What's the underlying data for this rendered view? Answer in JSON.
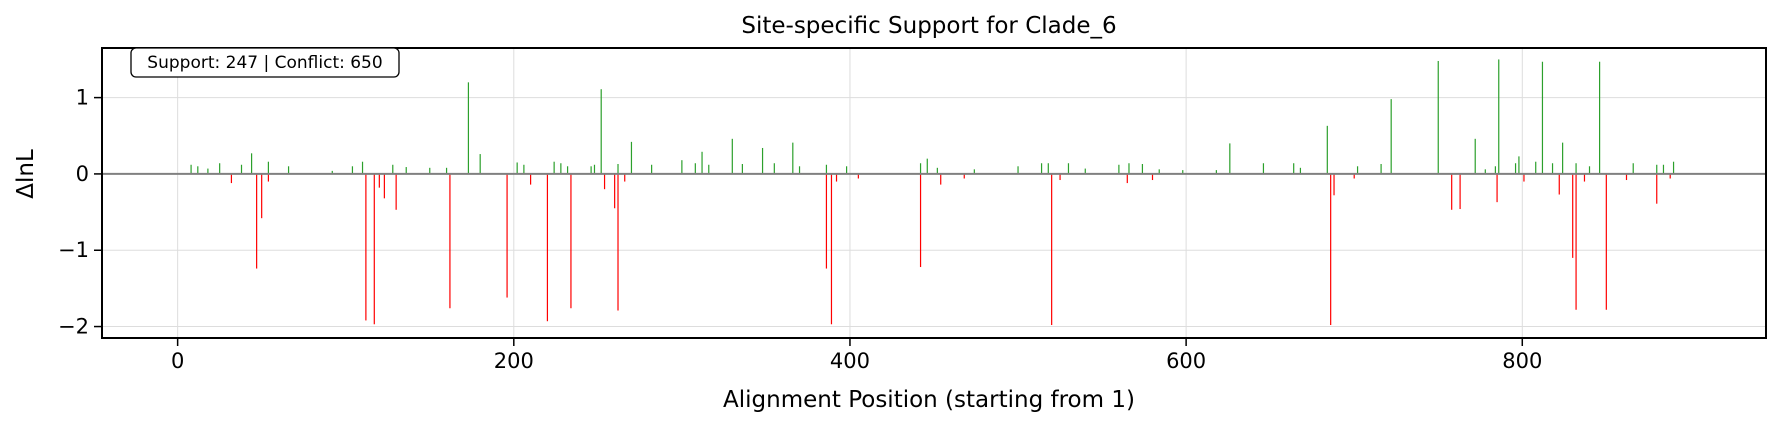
{
  "chart_data": {
    "type": "bar",
    "title": "Site-specific Support for Clade_6",
    "xlabel": "Alignment Position (starting from 1)",
    "ylabel": "ΔlnL",
    "xlim": [
      -45,
      945
    ],
    "ylim": [
      -2.15,
      1.65
    ],
    "xticks": [
      0,
      200,
      400,
      600,
      800
    ],
    "yticks": [
      -2,
      -1,
      0,
      1
    ],
    "ytick_labels": [
      "−2",
      "−1",
      "0",
      "1"
    ],
    "grid": true,
    "annotation": "Support: 247 | Conflict: 650",
    "colors": {
      "support": "#2ca02c",
      "conflict": "#ff0000",
      "zero_line": "#808080",
      "grid": "#dddddd"
    },
    "series": [
      {
        "kind": "support",
        "x": [
          8,
          12,
          18,
          25,
          38,
          44,
          54,
          66,
          92,
          104,
          110,
          128,
          136,
          150,
          160,
          173,
          180,
          202,
          206,
          224,
          228,
          232,
          246,
          248,
          252,
          262,
          270,
          282,
          300,
          308,
          312,
          316,
          330,
          336,
          348,
          355,
          366,
          370,
          386,
          398,
          442,
          446,
          452,
          474,
          500,
          514,
          518,
          530,
          540,
          560,
          566,
          574,
          584,
          598,
          618,
          626,
          646,
          664,
          668,
          684,
          702,
          716,
          722,
          750,
          772,
          778,
          784,
          786,
          796,
          798,
          808,
          812,
          818,
          824,
          832,
          840,
          846,
          866,
          880,
          884,
          890
        ],
        "values": [
          0.12,
          0.1,
          0.07,
          0.14,
          0.12,
          0.27,
          0.16,
          0.1,
          0.04,
          0.1,
          0.16,
          0.12,
          0.09,
          0.08,
          0.08,
          1.2,
          0.26,
          0.15,
          0.12,
          0.16,
          0.14,
          0.1,
          0.1,
          0.12,
          1.11,
          0.13,
          0.42,
          0.12,
          0.18,
          0.14,
          0.29,
          0.12,
          0.46,
          0.13,
          0.34,
          0.14,
          0.41,
          0.1,
          0.12,
          0.1,
          0.14,
          0.2,
          0.08,
          0.06,
          0.1,
          0.14,
          0.14,
          0.14,
          0.07,
          0.12,
          0.14,
          0.13,
          0.06,
          0.05,
          0.05,
          0.4,
          0.14,
          0.14,
          0.08,
          0.63,
          0.1,
          0.13,
          0.98,
          1.48,
          0.46,
          0.06,
          0.1,
          1.5,
          0.14,
          0.23,
          0.16,
          1.47,
          0.14,
          0.41,
          0.14,
          0.1,
          1.47,
          0.14,
          0.12,
          0.12,
          0.16
        ]
      },
      {
        "kind": "conflict",
        "x": [
          32,
          47,
          50,
          54,
          112,
          117,
          120,
          123,
          130,
          162,
          196,
          210,
          220,
          234,
          254,
          260,
          262,
          266,
          386,
          389,
          392,
          405,
          442,
          454,
          468,
          520,
          525,
          565,
          580,
          686,
          688,
          700,
          758,
          763,
          785,
          801,
          822,
          830,
          832,
          837,
          850,
          862,
          880,
          888
        ],
        "values": [
          -0.12,
          -1.24,
          -0.58,
          -0.1,
          -1.92,
          -1.97,
          -0.18,
          -0.32,
          -0.47,
          -1.76,
          -1.62,
          -0.14,
          -1.93,
          -1.76,
          -0.2,
          -0.45,
          -1.79,
          -0.1,
          -1.24,
          -1.97,
          -0.1,
          -0.06,
          -1.22,
          -0.14,
          -0.06,
          -1.98,
          -0.08,
          -0.12,
          -0.08,
          -1.98,
          -0.28,
          -0.06,
          -0.47,
          -0.46,
          -0.37,
          -0.1,
          -0.27,
          -1.1,
          -1.78,
          -0.1,
          -1.78,
          -0.08,
          -0.39,
          -0.06
        ]
      }
    ]
  }
}
